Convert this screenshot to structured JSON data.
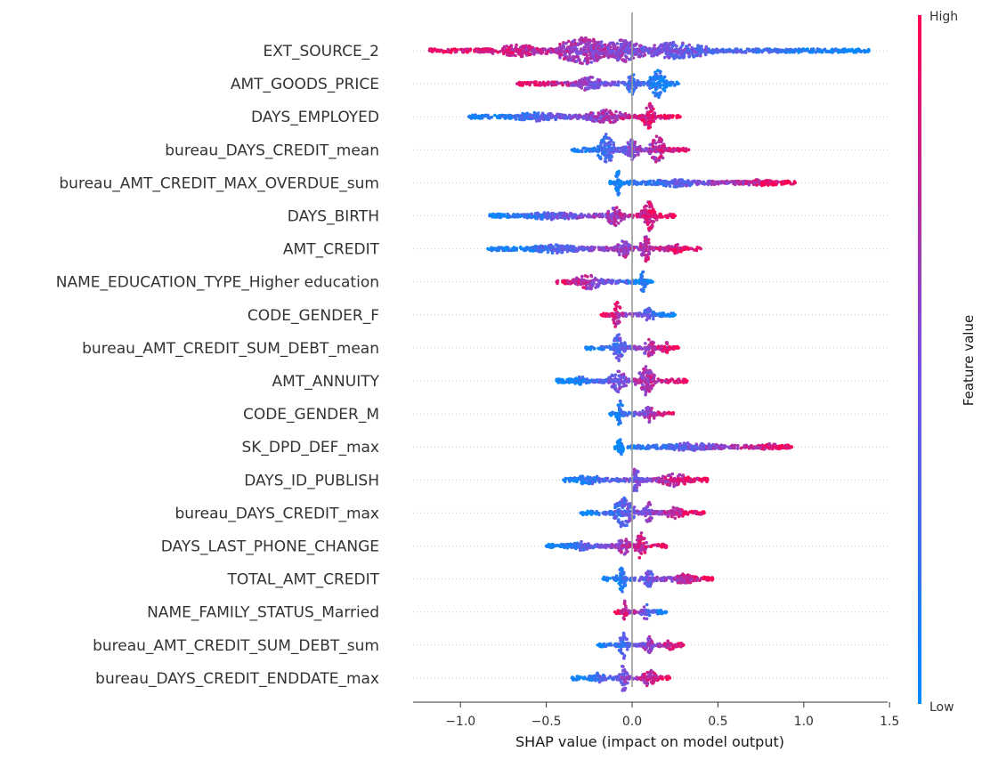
{
  "chart_data": {
    "type": "scatter",
    "subtype": "shap-beeswarm",
    "xlabel": "SHAP value (impact on model output)",
    "xlim": [
      -1.3,
      1.5
    ],
    "xticks": [
      -1.0,
      -0.5,
      0.0,
      0.5,
      1.0,
      1.5
    ],
    "xtick_labels": [
      "−1.0",
      "−0.5",
      "0.0",
      "0.5",
      "1.0",
      "1.5"
    ],
    "colorbar": {
      "title": "Feature value",
      "high_label": "High",
      "low_label": "Low",
      "high_color": "#ff0052",
      "low_color": "#008bfb"
    },
    "features": [
      {
        "name": "EXT_SOURCE_2",
        "min": -1.18,
        "max": 1.38,
        "low_side": "right",
        "clusters": [
          {
            "c": -0.28,
            "w": 0.28,
            "h": 16
          },
          {
            "c": -0.05,
            "w": 0.22,
            "h": 13
          },
          {
            "c": 0.25,
            "w": 0.35,
            "h": 10
          },
          {
            "c": -0.65,
            "w": 0.3,
            "h": 7
          }
        ]
      },
      {
        "name": "AMT_GOODS_PRICE",
        "min": -0.67,
        "max": 0.27,
        "low_side": "right",
        "clusters": [
          {
            "c": 0.15,
            "w": 0.08,
            "h": 17
          },
          {
            "c": 0.0,
            "w": 0.05,
            "h": 13
          },
          {
            "c": -0.25,
            "w": 0.12,
            "h": 9
          }
        ]
      },
      {
        "name": "DAYS_EMPLOYED",
        "min": -0.95,
        "max": 0.28,
        "low_side": "left",
        "clusters": [
          {
            "c": 0.1,
            "w": 0.06,
            "h": 16
          },
          {
            "c": -0.15,
            "w": 0.2,
            "h": 8
          },
          {
            "c": -0.55,
            "w": 0.3,
            "h": 5
          }
        ]
      },
      {
        "name": "bureau_DAYS_CREDIT_mean",
        "min": -0.35,
        "max": 0.33,
        "low_side": "left",
        "clusters": [
          {
            "c": -0.15,
            "w": 0.08,
            "h": 18
          },
          {
            "c": 0.15,
            "w": 0.07,
            "h": 17
          },
          {
            "c": 0.0,
            "w": 0.08,
            "h": 12
          }
        ]
      },
      {
        "name": "bureau_AMT_CREDIT_MAX_OVERDUE_sum",
        "min": -0.13,
        "max": 0.95,
        "low_side": "left",
        "clusters": [
          {
            "c": -0.08,
            "w": 0.03,
            "h": 16
          },
          {
            "c": 0.25,
            "w": 0.25,
            "h": 5
          },
          {
            "c": 0.75,
            "w": 0.2,
            "h": 4
          }
        ]
      },
      {
        "name": "DAYS_BIRTH",
        "min": -0.83,
        "max": 0.25,
        "low_side": "left",
        "clusters": [
          {
            "c": 0.1,
            "w": 0.07,
            "h": 17
          },
          {
            "c": -0.1,
            "w": 0.08,
            "h": 12
          },
          {
            "c": -0.45,
            "w": 0.3,
            "h": 5
          }
        ]
      },
      {
        "name": "AMT_CREDIT",
        "min": -0.84,
        "max": 0.4,
        "low_side": "left",
        "clusters": [
          {
            "c": 0.08,
            "w": 0.05,
            "h": 16
          },
          {
            "c": -0.05,
            "w": 0.07,
            "h": 11
          },
          {
            "c": 0.25,
            "w": 0.1,
            "h": 6
          },
          {
            "c": -0.45,
            "w": 0.3,
            "h": 5
          }
        ]
      },
      {
        "name": "NAME_EDUCATION_TYPE_Higher education",
        "min": -0.44,
        "max": 0.12,
        "low_side": "right",
        "clusters": [
          {
            "c": 0.06,
            "w": 0.03,
            "h": 14
          },
          {
            "c": -0.25,
            "w": 0.15,
            "h": 9
          }
        ]
      },
      {
        "name": "CODE_GENDER_F",
        "min": -0.18,
        "max": 0.25,
        "low_side": "right",
        "clusters": [
          {
            "c": -0.09,
            "w": 0.04,
            "h": 17
          },
          {
            "c": 0.1,
            "w": 0.05,
            "h": 10
          }
        ]
      },
      {
        "name": "bureau_AMT_CREDIT_SUM_DEBT_mean",
        "min": -0.27,
        "max": 0.27,
        "low_side": "left",
        "clusters": [
          {
            "c": -0.08,
            "w": 0.06,
            "h": 16
          },
          {
            "c": 0.1,
            "w": 0.06,
            "h": 11
          },
          {
            "c": 0.2,
            "w": 0.05,
            "h": 7
          }
        ]
      },
      {
        "name": "AMT_ANNUITY",
        "min": -0.44,
        "max": 0.32,
        "low_side": "left",
        "clusters": [
          {
            "c": 0.08,
            "w": 0.08,
            "h": 17
          },
          {
            "c": -0.08,
            "w": 0.08,
            "h": 13
          },
          {
            "c": -0.3,
            "w": 0.12,
            "h": 5
          }
        ]
      },
      {
        "name": "CODE_GENDER_M",
        "min": -0.13,
        "max": 0.24,
        "low_side": "left",
        "clusters": [
          {
            "c": -0.07,
            "w": 0.04,
            "h": 15
          },
          {
            "c": 0.1,
            "w": 0.06,
            "h": 10
          }
        ]
      },
      {
        "name": "SK_DPD_DEF_max",
        "min": -0.1,
        "max": 0.93,
        "low_side": "left",
        "clusters": [
          {
            "c": -0.07,
            "w": 0.03,
            "h": 15
          },
          {
            "c": 0.35,
            "w": 0.3,
            "h": 5
          },
          {
            "c": 0.8,
            "w": 0.12,
            "h": 4
          }
        ]
      },
      {
        "name": "DAYS_ID_PUBLISH",
        "min": -0.4,
        "max": 0.44,
        "low_side": "left",
        "clusters": [
          {
            "c": 0.02,
            "w": 0.04,
            "h": 16
          },
          {
            "c": 0.25,
            "w": 0.15,
            "h": 8
          },
          {
            "c": -0.25,
            "w": 0.15,
            "h": 6
          }
        ]
      },
      {
        "name": "bureau_DAYS_CREDIT_max",
        "min": -0.3,
        "max": 0.42,
        "low_side": "left",
        "clusters": [
          {
            "c": -0.05,
            "w": 0.1,
            "h": 18
          },
          {
            "c": 0.1,
            "w": 0.05,
            "h": 13
          },
          {
            "c": 0.25,
            "w": 0.1,
            "h": 7
          }
        ]
      },
      {
        "name": "DAYS_LAST_PHONE_CHANGE",
        "min": -0.5,
        "max": 0.2,
        "low_side": "left",
        "clusters": [
          {
            "c": 0.05,
            "w": 0.05,
            "h": 16
          },
          {
            "c": -0.05,
            "w": 0.06,
            "h": 11
          },
          {
            "c": -0.3,
            "w": 0.15,
            "h": 5
          }
        ]
      },
      {
        "name": "TOTAL_AMT_CREDIT",
        "min": -0.17,
        "max": 0.47,
        "low_side": "left",
        "clusters": [
          {
            "c": -0.06,
            "w": 0.04,
            "h": 16
          },
          {
            "c": 0.1,
            "w": 0.06,
            "h": 10
          },
          {
            "c": 0.3,
            "w": 0.12,
            "h": 6
          }
        ]
      },
      {
        "name": "NAME_FAMILY_STATUS_Married",
        "min": -0.1,
        "max": 0.2,
        "low_side": "right",
        "clusters": [
          {
            "c": -0.04,
            "w": 0.02,
            "h": 16
          },
          {
            "c": 0.08,
            "w": 0.04,
            "h": 10
          }
        ]
      },
      {
        "name": "bureau_AMT_CREDIT_SUM_DEBT_sum",
        "min": -0.2,
        "max": 0.3,
        "low_side": "left",
        "clusters": [
          {
            "c": -0.05,
            "w": 0.04,
            "h": 16
          },
          {
            "c": 0.1,
            "w": 0.06,
            "h": 10
          },
          {
            "c": 0.22,
            "w": 0.06,
            "h": 6
          }
        ]
      },
      {
        "name": "bureau_DAYS_CREDIT_ENDDATE_max",
        "min": -0.35,
        "max": 0.22,
        "low_side": "left",
        "clusters": [
          {
            "c": -0.05,
            "w": 0.04,
            "h": 17
          },
          {
            "c": 0.1,
            "w": 0.06,
            "h": 11
          },
          {
            "c": -0.2,
            "w": 0.08,
            "h": 6
          }
        ]
      }
    ]
  }
}
